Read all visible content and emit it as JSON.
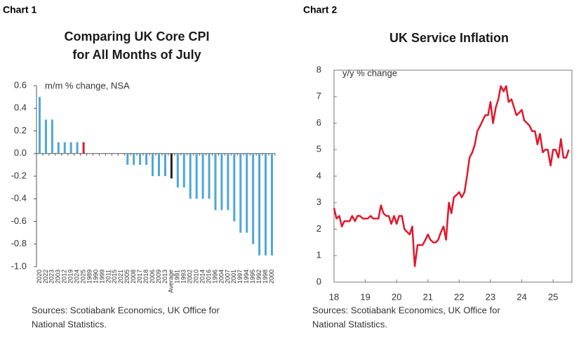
{
  "chart_data": [
    {
      "type": "bar",
      "chart_label": "Chart 1",
      "title": [
        "Comparing UK Core CPI",
        "for All Months of July"
      ],
      "annotation": "m/m % change, NSA",
      "source": [
        "Sources: Scotiabank Economics, UK Office for",
        "National Statistics."
      ],
      "categories": [
        "2020",
        "2022",
        "2023",
        "2003",
        "2012",
        "2019",
        "2024",
        "2025",
        "1989",
        "1990",
        "1999",
        "2011",
        "2015",
        "2021",
        "2005",
        "2008",
        "2017",
        "2018",
        "2006",
        "2009",
        "2013",
        "Average",
        "1991",
        "1993",
        "2002",
        "2010",
        "2014",
        "2016",
        "1996",
        "2004",
        "2007",
        "2001",
        "1997",
        "1994",
        "1995",
        "1992",
        "1998",
        "2000"
      ],
      "values": [
        0.5,
        0.3,
        0.3,
        0.1,
        0.1,
        0.1,
        0.1,
        0.1,
        0,
        0,
        0,
        0,
        0,
        0,
        -0.1,
        -0.1,
        -0.1,
        -0.1,
        -0.2,
        -0.2,
        -0.2,
        -0.22,
        -0.3,
        -0.3,
        -0.4,
        -0.4,
        -0.4,
        -0.4,
        -0.5,
        -0.5,
        -0.5,
        -0.6,
        -0.7,
        -0.7,
        -0.8,
        -0.9,
        -0.9,
        -0.9
      ],
      "colors": [
        "#4ea6d8",
        "#4ea6d8",
        "#4ea6d8",
        "#4ea6d8",
        "#4ea6d8",
        "#4ea6d8",
        "#4ea6d8",
        "#e3162b",
        "#4ea6d8",
        "#4ea6d8",
        "#4ea6d8",
        "#4ea6d8",
        "#4ea6d8",
        "#4ea6d8",
        "#4ea6d8",
        "#4ea6d8",
        "#4ea6d8",
        "#4ea6d8",
        "#4ea6d8",
        "#4ea6d8",
        "#4ea6d8",
        "#222222",
        "#4ea6d8",
        "#4ea6d8",
        "#4ea6d8",
        "#4ea6d8",
        "#4ea6d8",
        "#4ea6d8",
        "#4ea6d8",
        "#4ea6d8",
        "#4ea6d8",
        "#4ea6d8",
        "#4ea6d8",
        "#4ea6d8",
        "#4ea6d8",
        "#4ea6d8",
        "#4ea6d8",
        "#4ea6d8"
      ],
      "ylim": [
        -1.0,
        0.6
      ],
      "yticks": [
        0.6,
        0.4,
        0.2,
        {
          "value": 0,
          "label": "0.0"
        },
        -0.2,
        -0.4,
        -0.6,
        -0.8,
        {
          "value": -1.0,
          "label": "-1.0"
        }
      ]
    },
    {
      "type": "line",
      "chart_label": "Chart 2",
      "title": [
        "UK Service Inflation"
      ],
      "annotation": "y/y % change",
      "source": [
        "Sources: Scotiabank Economics, UK Office for",
        "National Statistics."
      ],
      "x": [
        18,
        18.08,
        18.17,
        18.25,
        18.33,
        18.42,
        18.5,
        18.58,
        18.67,
        18.75,
        18.83,
        18.92,
        19,
        19.08,
        19.17,
        19.25,
        19.33,
        19.42,
        19.5,
        19.58,
        19.67,
        19.75,
        19.83,
        19.92,
        20,
        20.08,
        20.17,
        20.25,
        20.33,
        20.42,
        20.5,
        20.58,
        20.67,
        20.75,
        20.83,
        20.92,
        21,
        21.08,
        21.17,
        21.25,
        21.33,
        21.42,
        21.5,
        21.58,
        21.67,
        21.75,
        21.83,
        21.92,
        22,
        22.08,
        22.17,
        22.25,
        22.33,
        22.42,
        22.5,
        22.58,
        22.67,
        22.75,
        22.83,
        22.92,
        23,
        23.08,
        23.17,
        23.25,
        23.33,
        23.42,
        23.5,
        23.58,
        23.67,
        23.75,
        23.83,
        23.92,
        24,
        24.08,
        24.17,
        24.25,
        24.33,
        24.42,
        24.5,
        24.58,
        24.67,
        24.75,
        24.83,
        24.92,
        25,
        25.08,
        25.17,
        25.25,
        25.33,
        25.42,
        25.5
      ],
      "series": [
        {
          "color": "#e3162b",
          "values": [
            2.8,
            2.4,
            2.5,
            2.1,
            2.3,
            2.3,
            2.3,
            2.5,
            2.3,
            2.5,
            2.5,
            2.4,
            2.4,
            2.4,
            2.5,
            2.4,
            2.4,
            2.4,
            2.9,
            2.6,
            2.5,
            2.5,
            2.2,
            2.5,
            2.2,
            2.5,
            2.5,
            2.0,
            1.9,
            1.8,
            2.1,
            0.6,
            1.4,
            1.4,
            1.4,
            1.6,
            1.8,
            1.6,
            1.5,
            1.5,
            1.6,
            1.9,
            2.1,
            1.6,
            3.0,
            2.6,
            3.2,
            3.3,
            3.4,
            3.2,
            3.4,
            4.0,
            4.7,
            4.9,
            5.2,
            5.7,
            5.9,
            6.1,
            6.3,
            6.3,
            6.8,
            6.0,
            6.6,
            6.9,
            7.4,
            7.2,
            7.4,
            6.8,
            6.9,
            6.6,
            6.3,
            6.4,
            6.5,
            6.1,
            6.0,
            5.9,
            5.7,
            5.7,
            5.2,
            5.6,
            4.9,
            5.0,
            5.0,
            4.4,
            5.0,
            5.0,
            4.7,
            5.4,
            4.7,
            4.7,
            5.0
          ]
        }
      ],
      "xlim": [
        18,
        25.6
      ],
      "xticks": [
        18,
        19,
        20,
        21,
        22,
        23,
        24,
        25
      ],
      "ylim": [
        0,
        8
      ],
      "yticks": [
        0,
        1,
        2,
        3,
        4,
        5,
        6,
        7,
        8
      ]
    }
  ]
}
